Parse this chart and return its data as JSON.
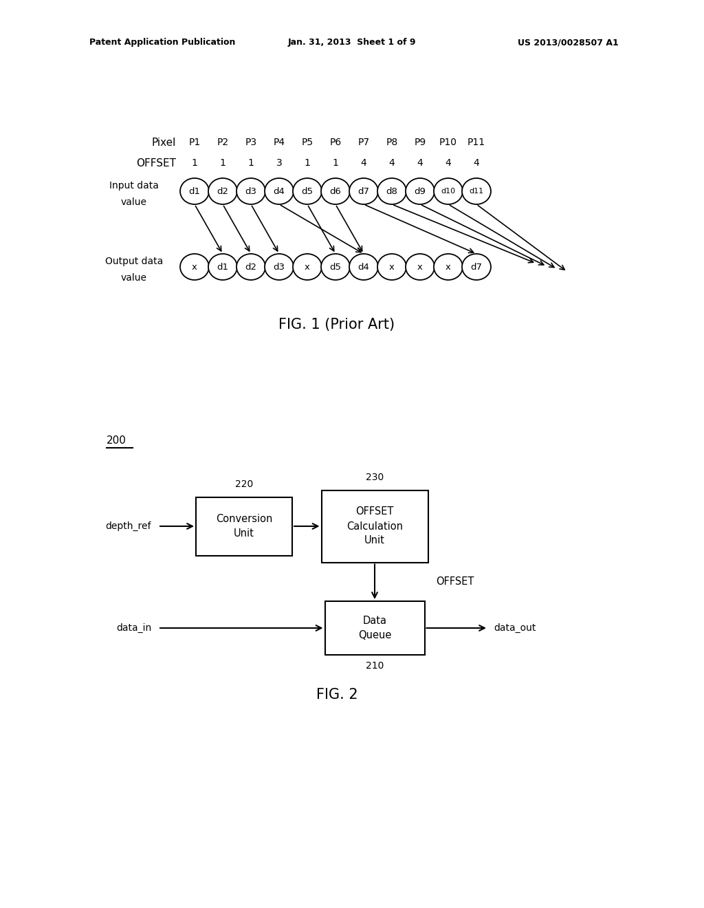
{
  "bg_color": "#ffffff",
  "header_text": "Patent Application Publication",
  "header_date": "Jan. 31, 2013  Sheet 1 of 9",
  "header_patent": "US 2013/0028507 A1",
  "fig1_title": "FIG. 1 (Prior Art)",
  "fig2_title": "FIG. 2",
  "pixel_labels": [
    "P1",
    "P2",
    "P3",
    "P4",
    "P5",
    "P6",
    "P7",
    "P8",
    "P9",
    "P10",
    "P11"
  ],
  "offset_values": [
    "1",
    "1",
    "1",
    "3",
    "1",
    "1",
    "4",
    "4",
    "4",
    "4",
    "4"
  ],
  "input_labels": [
    "d1",
    "d2",
    "d3",
    "d4",
    "d5",
    "d6",
    "d7",
    "d8",
    "d9",
    "d10",
    "d11"
  ],
  "output_labels": [
    "x",
    "d1",
    "d2",
    "d3",
    "x",
    "d5",
    "d4",
    "x",
    "x",
    "x",
    "d7"
  ],
  "fig2_label": "200",
  "box220_label": "Conversion\nUnit",
  "box220_num": "220",
  "box230_label": "OFFSET\nCalculation\nUnit",
  "box230_num": "230",
  "box210_label": "Data\nQueue",
  "box210_num": "210",
  "depth_ref_label": "depth_ref",
  "data_in_label": "data_in",
  "data_out_label": "data_out",
  "offset_label": "OFFSET"
}
